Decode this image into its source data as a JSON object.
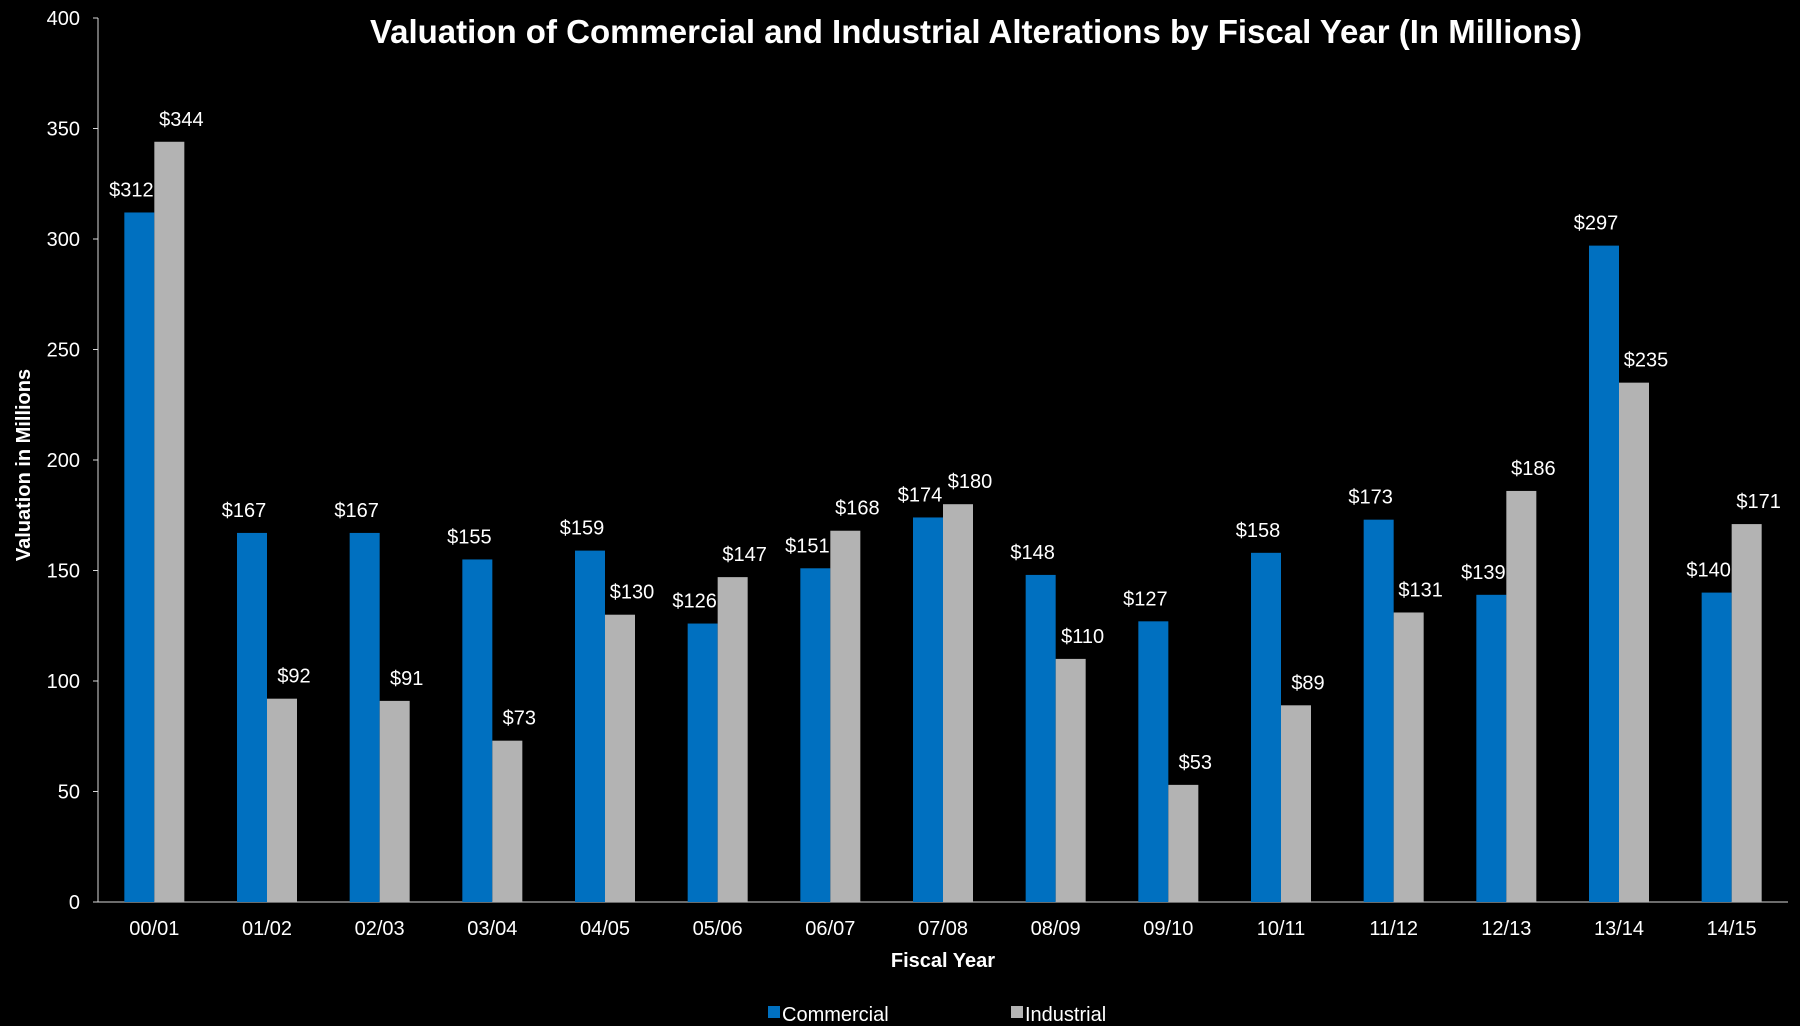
{
  "chart_data": {
    "type": "bar",
    "title": "Valuation of Commercial and Industrial Alterations by Fiscal Year (In Millions)",
    "xlabel": "Fiscal Year",
    "ylabel": "Valuation in Millions",
    "ylim": [
      0,
      400
    ],
    "yticks": [
      0,
      50,
      100,
      150,
      200,
      250,
      300,
      350,
      400
    ],
    "categories": [
      "00/01",
      "01/02",
      "02/03",
      "03/04",
      "04/05",
      "05/06",
      "06/07",
      "07/08",
      "08/09",
      "09/10",
      "10/11",
      "11/12",
      "12/13",
      "13/14",
      "14/15"
    ],
    "series": [
      {
        "name": "Commercial",
        "color": "#0070c0",
        "values": [
          312,
          167,
          167,
          155,
          159,
          126,
          151,
          174,
          148,
          127,
          158,
          173,
          139,
          297,
          140
        ],
        "labels": [
          "$312",
          "$167",
          "$167",
          "$155",
          "$159",
          "$126",
          "$151",
          "$174",
          "$148",
          "$127",
          "$158",
          "$173",
          "$139",
          "$297",
          "$140"
        ]
      },
      {
        "name": "Industrial",
        "color": "#b3b3b3",
        "values": [
          344,
          92,
          91,
          73,
          130,
          147,
          168,
          180,
          110,
          53,
          89,
          131,
          186,
          235,
          171
        ],
        "labels": [
          "$344",
          "$92",
          "$91",
          "$73",
          "$130",
          "$147",
          "$168",
          "$180",
          "$110",
          "$53",
          "$89",
          "$131",
          "$186",
          "$235",
          "$171"
        ]
      }
    ],
    "grid": false,
    "legend": "bottom-center"
  }
}
